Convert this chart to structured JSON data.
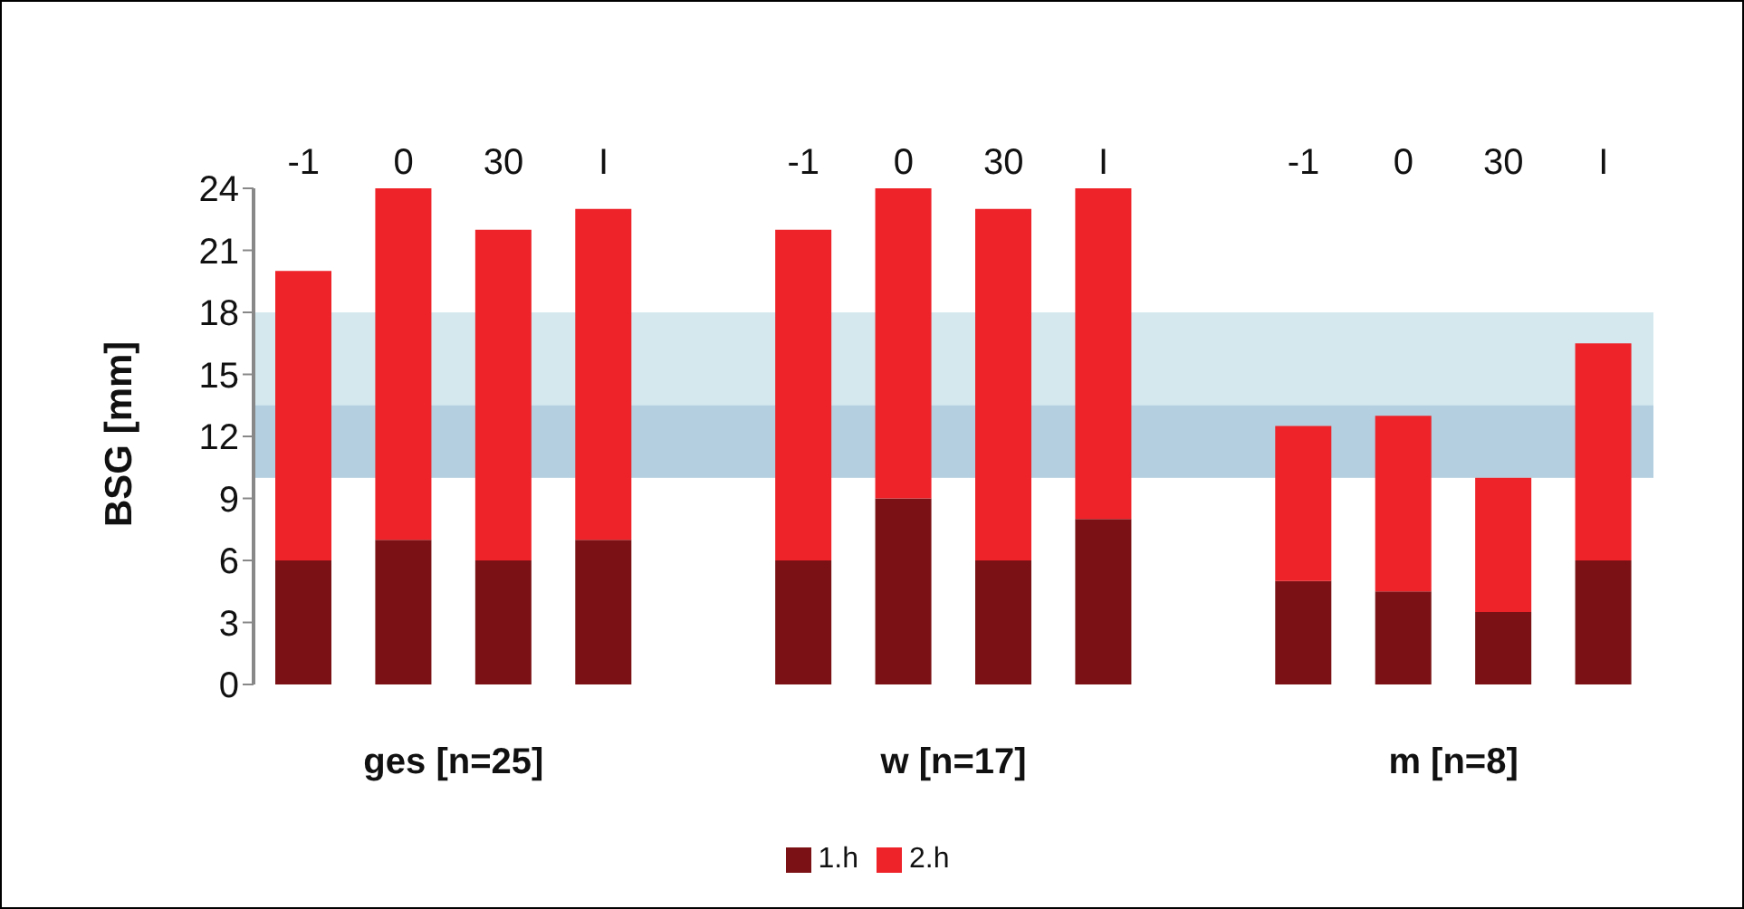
{
  "chart_data": {
    "type": "bar",
    "stacked": true,
    "ylabel": "BSG [mm]",
    "categories": [
      "-1",
      "0",
      "30",
      "I",
      null,
      "-1",
      "0",
      "30",
      "I",
      null,
      "-1",
      "0",
      "30",
      "I"
    ],
    "series": [
      {
        "name": "1.h",
        "color": "#7b1114",
        "values": [
          6,
          7,
          6,
          7,
          null,
          6,
          9,
          6,
          8,
          null,
          5,
          4.5,
          3.5,
          6
        ]
      },
      {
        "name": "2.h",
        "color": "#ee2229",
        "values": [
          14,
          17,
          16,
          16,
          null,
          16,
          15,
          17,
          16,
          null,
          7.5,
          8.5,
          6.5,
          10.5
        ]
      }
    ],
    "ylim": [
      0,
      24
    ],
    "yticks": [
      0,
      3,
      6,
      9,
      12,
      15,
      18,
      21,
      24
    ],
    "bands": [
      {
        "axis": "y",
        "from": 10,
        "to": 18,
        "color": "#a9d1dd"
      },
      {
        "axis": "y",
        "from": 10,
        "to": 13.5,
        "color": "#94b8d2"
      }
    ],
    "annotations": [
      "ges [n=25]",
      "w [n=17]",
      "m [n=8]"
    ],
    "legend": "bottom",
    "grid": false
  }
}
